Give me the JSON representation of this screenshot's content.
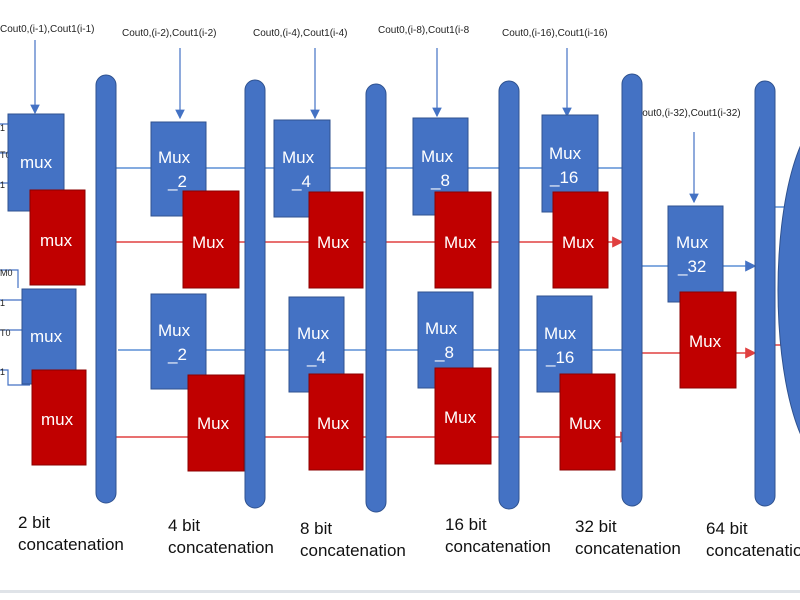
{
  "top_inputs": [
    "Cout0,(i-1),Cout1(i-1)",
    "Cout0,(i-2),Cout1(i-2)",
    "Cout0,(i-4),Cout1(i-4)",
    "Cout0,(i-8),Cout1(i-8",
    "Cout0,(i-16),Cout1(i-16)",
    "Cout0,(i-32),Cout1(i-32)"
  ],
  "side_inputs": [
    "1",
    "T0",
    "1",
    "M0",
    "1",
    "T0",
    "1"
  ],
  "mux_labels": {
    "stage1": "mux",
    "stage2": [
      "Mux",
      "_2"
    ],
    "stage3": [
      "Mux",
      "_4"
    ],
    "stage4": [
      "Mux",
      "_8"
    ],
    "stage5": [
      "Mux",
      "_16"
    ],
    "stage6": [
      "Mux",
      "_32"
    ],
    "red": "Mux"
  },
  "stages": [
    {
      "bits": "2 bit",
      "label": "concatenation"
    },
    {
      "bits": "4 bit",
      "label": "concatenation"
    },
    {
      "bits": "8 bit",
      "label": "concatenation"
    },
    {
      "bits": "16 bit",
      "label": "concatenation"
    },
    {
      "bits": "32 bit",
      "label": "concatenation"
    },
    {
      "bits": "64 bit",
      "label": "concatenation"
    }
  ],
  "colors": {
    "blue": "#4472c4",
    "red": "#c00000"
  }
}
